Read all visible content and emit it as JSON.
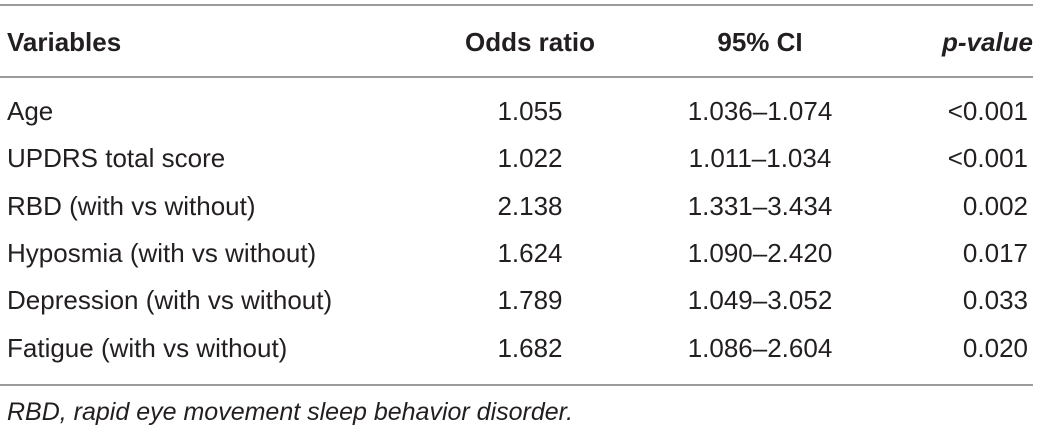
{
  "table": {
    "headers": {
      "variables": "Variables",
      "odds_ratio": "Odds ratio",
      "ci": "95% CI",
      "p_value": "p-value"
    },
    "rows": [
      {
        "variable": "Age",
        "odds_ratio": "1.055",
        "ci": "1.036–1.074",
        "p_value": "<0.001"
      },
      {
        "variable": "UPDRS total score",
        "odds_ratio": "1.022",
        "ci": "1.011–1.034",
        "p_value": "<0.001"
      },
      {
        "variable": "RBD (with vs without)",
        "odds_ratio": "2.138",
        "ci": "1.331–3.434",
        "p_value": "0.002"
      },
      {
        "variable": "Hyposmia (with vs without)",
        "odds_ratio": "1.624",
        "ci": "1.090–2.420",
        "p_value": "0.017"
      },
      {
        "variable": "Depression (with vs without)",
        "odds_ratio": "1.789",
        "ci": "1.049–3.052",
        "p_value": "0.033"
      },
      {
        "variable": "Fatigue (with vs without)",
        "odds_ratio": "1.682",
        "ci": "1.086–2.604",
        "p_value": "0.020"
      }
    ],
    "footnote": "RBD, rapid eye movement sleep behavior disorder."
  }
}
